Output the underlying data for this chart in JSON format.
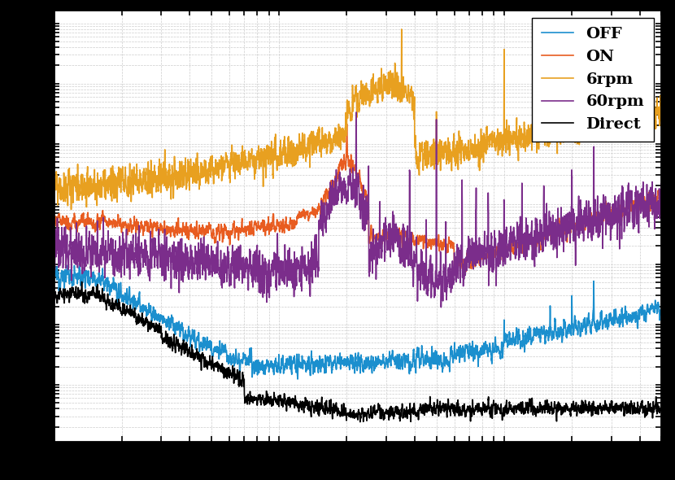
{
  "legend_labels": [
    "OFF",
    "ON",
    "6rpm",
    "60rpm",
    "Direct"
  ],
  "line_colors": [
    "#1b8fce",
    "#e85c20",
    "#e8a020",
    "#7b2d8b",
    "#000000"
  ],
  "line_widths": [
    1.2,
    1.2,
    1.2,
    1.2,
    1.2
  ],
  "background_color": "#ffffff",
  "outer_background": "#000000",
  "grid_color": "#cccccc",
  "figsize": [
    8.3,
    5.9
  ],
  "dpi": 100,
  "xlim": [
    1,
    500
  ],
  "legend_fontsize": 14
}
